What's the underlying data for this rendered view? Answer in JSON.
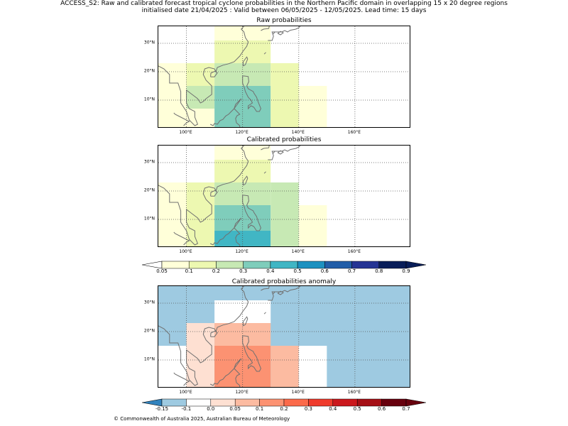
{
  "header": {
    "title_line1": "ACCESS_S2: Raw and calibrated forecast tropical cyclone probabilities in the Northern Pacific domain in overlapping 15 x 20 degree regions",
    "title_line2": "initialised date 21/04/2025 :  Valid between 06/05/2025 - 12/05/2025. Lead time: 15 days"
  },
  "panels": [
    {
      "id": "raw",
      "title": "Raw probabilities",
      "cells": [
        {
          "lon0": 90,
          "lon1": 110,
          "lat0": 0,
          "lat1": 7,
          "value": 0.05
        },
        {
          "lon0": 90,
          "lon1": 100,
          "lat0": 7,
          "lat1": 23,
          "value": 0.05
        },
        {
          "lon0": 100,
          "lon1": 110,
          "lat0": 7,
          "lat1": 15,
          "value": 0.2
        },
        {
          "lon0": 100,
          "lon1": 110,
          "lat0": 15,
          "lat1": 23,
          "value": 0.1
        },
        {
          "lon0": 110,
          "lon1": 130,
          "lat0": 0,
          "lat1": 15,
          "value": 0.35
        },
        {
          "lon0": 110,
          "lon1": 130,
          "lat0": 15,
          "lat1": 23,
          "value": 0.25
        },
        {
          "lon0": 110,
          "lon1": 130,
          "lat0": 23,
          "lat1": 31,
          "value": 0.1
        },
        {
          "lon0": 110,
          "lon1": 130,
          "lat0": 31,
          "lat1": 37,
          "value": 0.05
        },
        {
          "lon0": 130,
          "lon1": 140,
          "lat0": 0,
          "lat1": 23,
          "value": 0.1
        },
        {
          "lon0": 140,
          "lon1": 150,
          "lat0": 0,
          "lat1": 15,
          "value": 0.05
        }
      ]
    },
    {
      "id": "calibrated",
      "title": "Calibrated probabilities",
      "cells": [
        {
          "lon0": 90,
          "lon1": 100,
          "lat0": 0,
          "lat1": 23,
          "value": 0.05
        },
        {
          "lon0": 100,
          "lon1": 110,
          "lat0": 0,
          "lat1": 23,
          "value": 0.1
        },
        {
          "lon0": 110,
          "lon1": 130,
          "lat0": 0,
          "lat1": 6,
          "value": 0.4
        },
        {
          "lon0": 110,
          "lon1": 130,
          "lat0": 6,
          "lat1": 15,
          "value": 0.35
        },
        {
          "lon0": 110,
          "lon1": 130,
          "lat0": 15,
          "lat1": 23,
          "value": 0.25
        },
        {
          "lon0": 110,
          "lon1": 130,
          "lat0": 23,
          "lat1": 31,
          "value": 0.1
        },
        {
          "lon0": 110,
          "lon1": 130,
          "lat0": 31,
          "lat1": 37,
          "value": 0.05
        },
        {
          "lon0": 130,
          "lon1": 140,
          "lat0": 0,
          "lat1": 15,
          "value": 0.25
        },
        {
          "lon0": 130,
          "lon1": 140,
          "lat0": 15,
          "lat1": 23,
          "value": 0.2
        },
        {
          "lon0": 140,
          "lon1": 150,
          "lat0": 0,
          "lat1": 15,
          "value": 0.05
        }
      ]
    },
    {
      "id": "anomaly",
      "title": "Calibrated probabilities anomaly",
      "background_value": -0.15,
      "cells": [
        {
          "lon0": 90,
          "lon1": 100,
          "lat0": 0,
          "lat1": 15,
          "value": -0.1
        },
        {
          "lon0": 100,
          "lon1": 110,
          "lat0": 0,
          "lat1": 23,
          "value": 0.0
        },
        {
          "lon0": 110,
          "lon1": 130,
          "lat0": 0,
          "lat1": 6,
          "value": 0.15
        },
        {
          "lon0": 110,
          "lon1": 130,
          "lat0": 6,
          "lat1": 15,
          "value": 0.1
        },
        {
          "lon0": 110,
          "lon1": 130,
          "lat0": 15,
          "lat1": 23,
          "value": 0.05
        },
        {
          "lon0": 110,
          "lon1": 130,
          "lat0": 23,
          "lat1": 31,
          "value": -0.1
        },
        {
          "lon0": 130,
          "lon1": 140,
          "lat0": 0,
          "lat1": 15,
          "value": 0.05
        },
        {
          "lon0": 140,
          "lon1": 150,
          "lat0": 0,
          "lat1": 15,
          "value": -0.1
        }
      ]
    }
  ],
  "map_extent": {
    "lon_min": 90,
    "lon_max": 180,
    "lat_min": 0,
    "lat_max": 36
  },
  "lon_ticks": [
    "100°E",
    "120°E",
    "140°E",
    "160°E"
  ],
  "lon_tick_values": [
    100,
    120,
    140,
    160
  ],
  "lat_ticks": [
    "10°N",
    "20°N",
    "30°N"
  ],
  "lat_tick_values": [
    10,
    20,
    30
  ],
  "colorbar_prob": {
    "labels": [
      "0.05",
      "0.1",
      "0.2",
      "0.3",
      "0.4",
      "0.5",
      "0.6",
      "0.7",
      "0.8",
      "0.9"
    ],
    "colors": [
      "#ffffd9",
      "#edf8b1",
      "#c7e9b4",
      "#7fcdbb",
      "#41b6c4",
      "#1d91c0",
      "#225ea8",
      "#253494",
      "#081d58"
    ],
    "under_color": "#ffffff",
    "over_color": "#081d58"
  },
  "colorbar_anom": {
    "labels": [
      "-0.15",
      "-0.1",
      "0.0",
      "0.05",
      "0.1",
      "0.2",
      "0.3",
      "0.4",
      "0.5",
      "0.6",
      "0.7"
    ],
    "colors": [
      "#9ecae1",
      "#ffffff",
      "#fee0d2",
      "#fcbba1",
      "#fc9272",
      "#fb6a4a",
      "#ef3b2c",
      "#cb181d",
      "#a50f15",
      "#67000d"
    ],
    "under_color": "#3182bd",
    "over_color": "#67000d"
  },
  "footer": {
    "credit": "© Commonwealth of Australia 2025, Australian Bureau of Meteorology"
  }
}
